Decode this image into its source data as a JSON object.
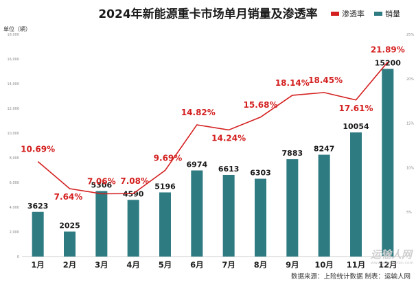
{
  "chart_data": {
    "type": "bar",
    "title": "2024年新能源重卡市场单月销量及渗透率",
    "y_unit_label": "单位（辆）",
    "categories": [
      "1月",
      "2月",
      "3月",
      "4月",
      "5月",
      "6月",
      "7月",
      "8月",
      "9月",
      "10月",
      "11月",
      "12月"
    ],
    "series": [
      {
        "name": "销量",
        "type": "bar",
        "color": "#2e7b82",
        "values": [
          3623,
          2025,
          5306,
          4590,
          5196,
          6974,
          6613,
          6303,
          7883,
          8247,
          10054,
          15200
        ]
      },
      {
        "name": "渗透率",
        "type": "line",
        "color": "#d42020",
        "axis": "right",
        "values": [
          10.69,
          7.64,
          7.06,
          7.08,
          9.69,
          14.82,
          14.24,
          15.68,
          18.14,
          18.45,
          17.61,
          21.89
        ]
      }
    ],
    "left_axis": {
      "ylim": [
        0,
        18000
      ],
      "ticks": [
        0,
        2000,
        4000,
        6000,
        8000,
        10000,
        12000,
        14000,
        16000,
        18000
      ]
    },
    "right_axis": {
      "ylim": [
        0,
        25
      ],
      "ticks": [
        "5%",
        "10%",
        "15%",
        "20%",
        "25%"
      ]
    },
    "legend": {
      "position": "top-right",
      "entries": [
        "渗透率",
        "销量"
      ]
    },
    "grid": false,
    "source_note": "数据来源：上险统计数据 制表：运输人网"
  },
  "watermark": {
    "text": "运输人网",
    "sub": "www.yunshuren.com"
  },
  "colors": {
    "bar": "#2e7b82",
    "line": "#d42020",
    "axis": "#cccccc"
  }
}
